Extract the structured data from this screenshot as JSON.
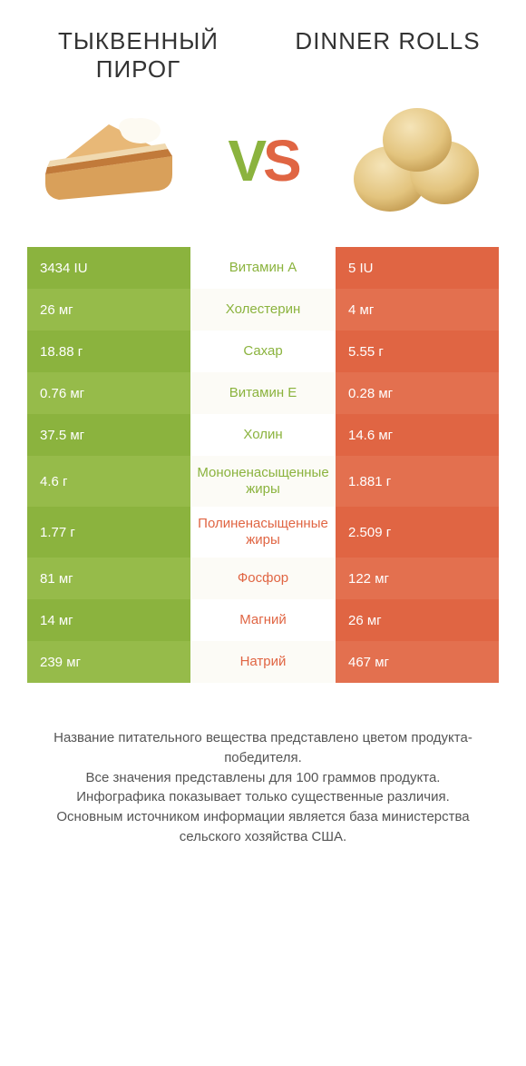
{
  "colors": {
    "left_primary": "#8bb33e",
    "left_alt": "#96bb4a",
    "right_primary": "#e06543",
    "right_alt": "#e3704f",
    "mid_bg_a": "#ffffff",
    "mid_bg_b": "#fcfbf6",
    "mid_text_left": "#8bb33e",
    "mid_text_right": "#e06543"
  },
  "header": {
    "left_title": "ТЫКВЕННЫЙ ПИРОГ",
    "right_title": "DINNER ROLLS",
    "vs_v": "V",
    "vs_s": "S"
  },
  "rows": [
    {
      "left": "3434 IU",
      "mid": "Витамин A",
      "right": "5 IU",
      "winner": "left"
    },
    {
      "left": "26 мг",
      "mid": "Холестерин",
      "right": "4 мг",
      "winner": "left"
    },
    {
      "left": "18.88 г",
      "mid": "Сахар",
      "right": "5.55 г",
      "winner": "left"
    },
    {
      "left": "0.76 мг",
      "mid": "Витамин E",
      "right": "0.28 мг",
      "winner": "left"
    },
    {
      "left": "37.5 мг",
      "mid": "Холин",
      "right": "14.6 мг",
      "winner": "left"
    },
    {
      "left": "4.6 г",
      "mid": "Мононенасыщенные жиры",
      "right": "1.881 г",
      "winner": "left"
    },
    {
      "left": "1.77 г",
      "mid": "Полиненасыщенные жиры",
      "right": "2.509 г",
      "winner": "right"
    },
    {
      "left": "81 мг",
      "mid": "Фосфор",
      "right": "122 мг",
      "winner": "right"
    },
    {
      "left": "14 мг",
      "mid": "Магний",
      "right": "26 мг",
      "winner": "right"
    },
    {
      "left": "239 мг",
      "mid": "Натрий",
      "right": "467 мг",
      "winner": "right"
    }
  ],
  "footer": {
    "line1": "Название питательного вещества представлено цветом продукта-победителя.",
    "line2": "Все значения представлены для 100 граммов продукта.",
    "line3": "Инфографика показывает только существенные различия.",
    "line4": "Основным источником информации является база министерства сельского хозяйства США."
  }
}
